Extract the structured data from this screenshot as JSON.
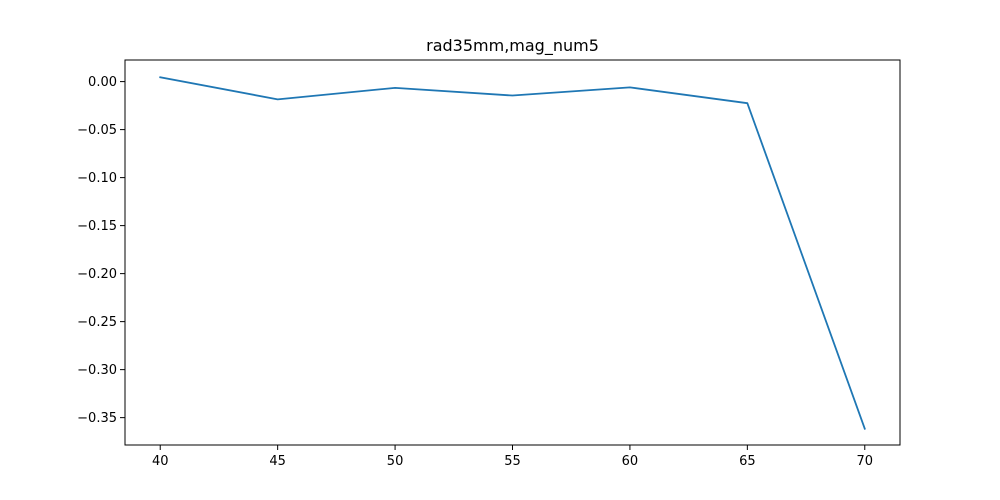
{
  "chart_data": {
    "type": "line",
    "title": "rad35mm,mag_num5",
    "xlabel": "",
    "ylabel": "",
    "xlim": [
      38.5,
      71.5
    ],
    "ylim": [
      -0.3785,
      0.0225
    ],
    "xticks": [
      40,
      45,
      50,
      55,
      60,
      65,
      70
    ],
    "xtick_labels": [
      "40",
      "45",
      "50",
      "55",
      "60",
      "65",
      "70"
    ],
    "yticks": [
      0.0,
      -0.05,
      -0.1,
      -0.15,
      -0.2,
      -0.25,
      -0.3,
      -0.35
    ],
    "ytick_labels": [
      "0.00",
      "−0.05",
      "−0.10",
      "−0.15",
      "−0.20",
      "−0.25",
      "−0.30",
      "−0.35"
    ],
    "grid": false,
    "series": [
      {
        "name": "series-1",
        "color": "#1f77b4",
        "x": [
          40,
          45,
          50,
          55,
          60,
          65,
          70
        ],
        "y": [
          0.0045,
          -0.0185,
          -0.0065,
          -0.0145,
          -0.006,
          -0.0225,
          -0.3615
        ]
      }
    ]
  }
}
